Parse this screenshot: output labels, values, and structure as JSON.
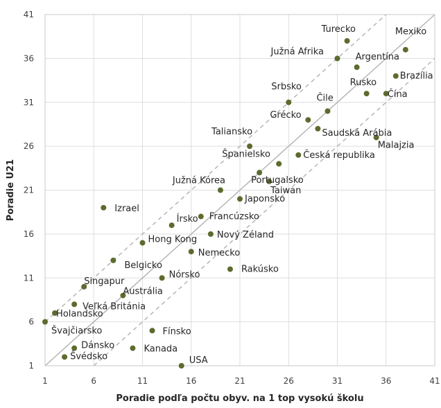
{
  "chart_data": {
    "type": "scatter",
    "title": "",
    "xlabel": "Poradie podľa počtu obyv. na 1 top vysokú školu",
    "ylabel": "Poradie U21",
    "xlim": [
      1,
      41
    ],
    "ylim": [
      1,
      41
    ],
    "x_ticks": [
      "1",
      "6",
      "11",
      "16",
      "21",
      "26",
      "31",
      "36",
      "41"
    ],
    "y_ticks": [
      "1",
      "6",
      "11",
      "16",
      "21",
      "26",
      "31",
      "36",
      "41"
    ],
    "grid": true,
    "point_color": "#5c6b2e",
    "reference_lines": [
      {
        "style": "solid",
        "color": "#b5b5b5",
        "from": [
          1,
          1
        ],
        "to": [
          41,
          41
        ]
      },
      {
        "style": "dashed",
        "color": "#b5b5b5",
        "from": [
          1,
          6
        ],
        "to": [
          36,
          41
        ]
      },
      {
        "style": "dashed",
        "color": "#b5b5b5",
        "from": [
          6,
          1
        ],
        "to": [
          41,
          36
        ]
      }
    ],
    "points": [
      {
        "label": "Turecko",
        "x": 32,
        "y": 38
      },
      {
        "label": "Mexiko",
        "x": 38,
        "y": 37
      },
      {
        "label": "Južná Afrika",
        "x": 31,
        "y": 36
      },
      {
        "label": "Argentína",
        "x": 33,
        "y": 35
      },
      {
        "label": "Brazília",
        "x": 37,
        "y": 34
      },
      {
        "label": "Rusko",
        "x": 34,
        "y": 32
      },
      {
        "label": "Čína",
        "x": 36,
        "y": 32
      },
      {
        "label": "Srbsko",
        "x": 26,
        "y": 31
      },
      {
        "label": "Čile",
        "x": 30,
        "y": 30
      },
      {
        "label": "Grécko",
        "x": 28,
        "y": 29
      },
      {
        "label": "Saudská Arábia",
        "x": 29,
        "y": 28
      },
      {
        "label": "Malajzia",
        "x": 35,
        "y": 27
      },
      {
        "label": "Taliansko",
        "x": 22,
        "y": 26
      },
      {
        "label": "Česká republika",
        "x": 27,
        "y": 25
      },
      {
        "label": "Španielsko",
        "x": 25,
        "y": 24
      },
      {
        "label": "Portugalsko",
        "x": 23,
        "y": 23
      },
      {
        "label": "Južná Kórea",
        "x": 19,
        "y": 21
      },
      {
        "label": "Taiwan",
        "x": 24,
        "y": 22
      },
      {
        "label": "Japonsko",
        "x": 21,
        "y": 20
      },
      {
        "label": "Izrael",
        "x": 7,
        "y": 19
      },
      {
        "label": "Írsko",
        "x": 14,
        "y": 17
      },
      {
        "label": "Francúzsko",
        "x": 17,
        "y": 18
      },
      {
        "label": "Nový Zéland",
        "x": 18,
        "y": 16
      },
      {
        "label": "Hong Kong",
        "x": 11,
        "y": 15
      },
      {
        "label": "Nemecko",
        "x": 16,
        "y": 14
      },
      {
        "label": "Belgicko",
        "x": 8,
        "y": 13
      },
      {
        "label": "Rakúsko",
        "x": 20,
        "y": 12
      },
      {
        "label": "Nórsko",
        "x": 13,
        "y": 11
      },
      {
        "label": "Singapur",
        "x": 5,
        "y": 10
      },
      {
        "label": "Austrália",
        "x": 9,
        "y": 9
      },
      {
        "label": "Veľká Británia",
        "x": 4,
        "y": 8
      },
      {
        "label": "Holandsko",
        "x": 2,
        "y": 7
      },
      {
        "label": "Švajčiarsko",
        "x": 1,
        "y": 6
      },
      {
        "label": "Fínsko",
        "x": 12,
        "y": 5
      },
      {
        "label": "Dánsko",
        "x": 4,
        "y": 3
      },
      {
        "label": "Kanada",
        "x": 10,
        "y": 3
      },
      {
        "label": "Švédsko",
        "x": 3,
        "y": 2
      },
      {
        "label": "USA",
        "x": 15,
        "y": 1
      }
    ]
  }
}
